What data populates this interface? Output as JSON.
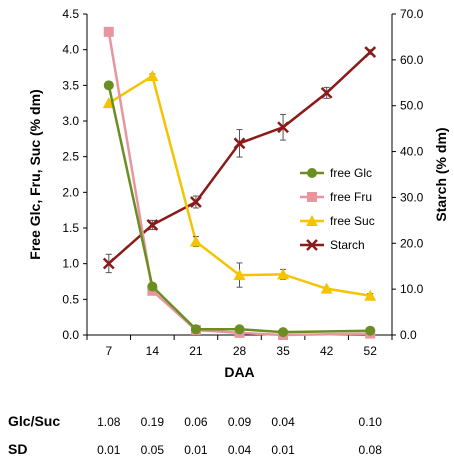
{
  "chart_data": {
    "type": "line",
    "x": [
      7,
      14,
      21,
      28,
      35,
      42,
      52
    ],
    "xlabel": "DAA",
    "ylabel": "Free Glc, Fru, Suc (% dm)",
    "y2label": "Starch (% dm)",
    "ylim": [
      0,
      4.5
    ],
    "y2lim": [
      0,
      70
    ],
    "yticks": [
      "0.0",
      "0.5",
      "1.0",
      "1.5",
      "2.0",
      "2.5",
      "3.0",
      "3.5",
      "4.0",
      "4.5"
    ],
    "y2ticks": [
      "0.0",
      "10.0",
      "20.0",
      "30.0",
      "40.0",
      "50.0",
      "60.0",
      "70.0"
    ],
    "xticks": [
      "7",
      "14",
      "21",
      "28",
      "35",
      "42",
      "52"
    ],
    "grid": false,
    "legend_position": "right",
    "series": [
      {
        "name": "free Glc",
        "axis": "left",
        "color": "#6b8e23",
        "marker": "circle",
        "x": [
          7,
          14,
          21,
          28,
          35,
          52
        ],
        "values": [
          3.5,
          0.68,
          0.08,
          0.08,
          0.04,
          0.06
        ],
        "errors": [
          0,
          0,
          0,
          0,
          0,
          0
        ]
      },
      {
        "name": "free Fru",
        "axis": "left",
        "color": "#e8959e",
        "marker": "square",
        "x": [
          7,
          14,
          21,
          28,
          35,
          52
        ],
        "values": [
          4.25,
          0.62,
          0.07,
          0.03,
          0.0,
          0.02
        ],
        "errors": [
          0,
          0,
          0,
          0,
          0,
          0
        ]
      },
      {
        "name": "free Suc",
        "axis": "left",
        "color": "#f5c400",
        "marker": "triangle",
        "x": [
          7,
          14,
          21,
          28,
          35,
          42,
          52
        ],
        "values": [
          3.25,
          3.63,
          1.31,
          0.84,
          0.85,
          0.65,
          0.55
        ],
        "errors": [
          0,
          0.03,
          0.07,
          0.17,
          0.07,
          0,
          0.03
        ]
      },
      {
        "name": "Starch",
        "axis": "right",
        "color": "#8b1a1a",
        "marker": "x",
        "x": [
          7,
          14,
          21,
          28,
          35,
          42,
          52
        ],
        "values": [
          15.6,
          24.0,
          29.0,
          41.8,
          45.3,
          52.8,
          61.7
        ],
        "errors": [
          2.0,
          1.0,
          1.3,
          3.0,
          2.8,
          1.2,
          0.5
        ]
      }
    ]
  },
  "table": {
    "columns_x": [
      7,
      14,
      21,
      28,
      35,
      52
    ],
    "rows": [
      {
        "label": "Glc/Suc",
        "values": [
          "1.08",
          "0.19",
          "0.06",
          "0.09",
          "0.04",
          "0.10"
        ]
      },
      {
        "label": "SD",
        "values": [
          "0.01",
          "0.05",
          "0.01",
          "0.04",
          "0.01",
          "0.08"
        ]
      }
    ]
  }
}
